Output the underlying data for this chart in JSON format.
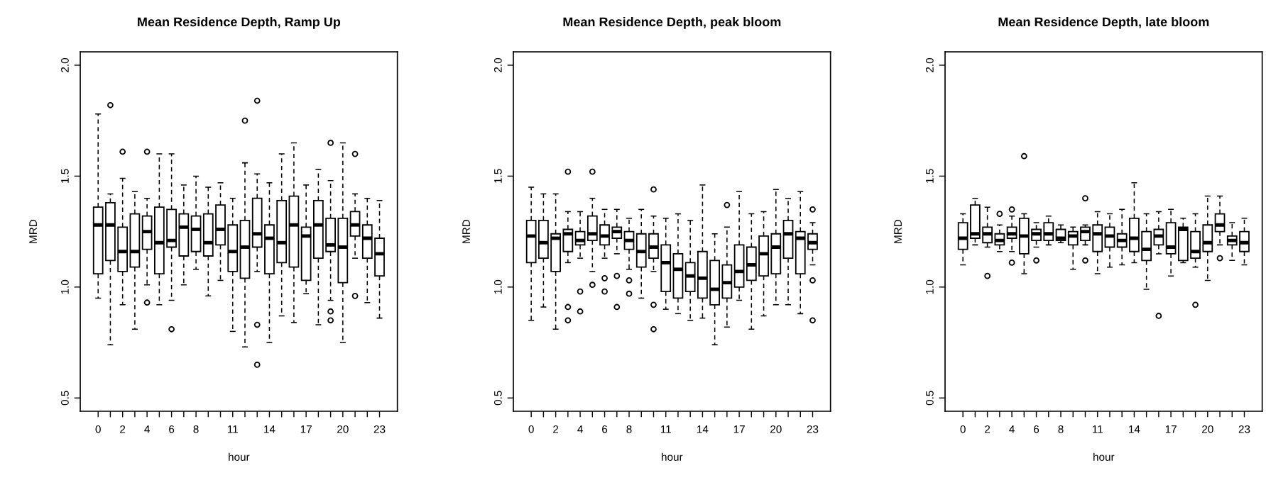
{
  "chart_data": [
    {
      "type": "box",
      "title": "Mean Residence Depth, Ramp Up",
      "xlabel": "hour",
      "ylabel": "MRD",
      "categories": [
        "0",
        null,
        "2",
        null,
        "4",
        null,
        "6",
        null,
        "8",
        null,
        null,
        "11",
        null,
        null,
        "14",
        null,
        null,
        "17",
        null,
        null,
        "20",
        null,
        null,
        "23"
      ],
      "ylim": [
        0.44,
        2.06
      ],
      "yticks": [
        {
          "value": 0.5,
          "label": "0.5"
        },
        {
          "value": 1.0,
          "label": "1.0"
        },
        {
          "value": 1.5,
          "label": "1.5"
        },
        {
          "value": 2.0,
          "label": "2.0"
        }
      ],
      "boxes": [
        {
          "low": 0.95,
          "q1": 1.06,
          "median": 1.28,
          "q3": 1.36,
          "high": 1.78
        },
        {
          "low": 0.74,
          "q1": 1.12,
          "median": 1.28,
          "q3": 1.38,
          "high": 1.42,
          "outliers": [
            1.82
          ]
        },
        {
          "low": 0.92,
          "q1": 1.07,
          "median": 1.16,
          "q3": 1.27,
          "high": 1.49,
          "outliers": [
            1.61
          ]
        },
        {
          "low": 0.81,
          "q1": 1.09,
          "median": 1.16,
          "q3": 1.33,
          "high": 1.43
        },
        {
          "low": 1.01,
          "q1": 1.17,
          "median": 1.25,
          "q3": 1.32,
          "high": 1.4,
          "outliers": [
            1.61,
            0.93
          ]
        },
        {
          "low": 0.92,
          "q1": 1.06,
          "median": 1.2,
          "q3": 1.36,
          "high": 1.6
        },
        {
          "low": 0.94,
          "q1": 1.18,
          "median": 1.21,
          "q3": 1.35,
          "high": 1.6,
          "outliers": [
            0.81
          ]
        },
        {
          "low": 1.01,
          "q1": 1.14,
          "median": 1.27,
          "q3": 1.33,
          "high": 1.46
        },
        {
          "low": 1.08,
          "q1": 1.16,
          "median": 1.26,
          "q3": 1.32,
          "high": 1.5
        },
        {
          "low": 0.96,
          "q1": 1.14,
          "median": 1.2,
          "q3": 1.33,
          "high": 1.45
        },
        {
          "low": 1.03,
          "q1": 1.19,
          "median": 1.26,
          "q3": 1.37,
          "high": 1.47
        },
        {
          "low": 0.8,
          "q1": 1.07,
          "median": 1.16,
          "q3": 1.28,
          "high": 1.4
        },
        {
          "low": 0.73,
          "q1": 1.04,
          "median": 1.18,
          "q3": 1.3,
          "high": 1.56,
          "outliers": [
            1.75
          ]
        },
        {
          "low": 1.07,
          "q1": 1.18,
          "median": 1.24,
          "q3": 1.4,
          "high": 1.51,
          "outliers": [
            1.84,
            0.83,
            0.65
          ]
        },
        {
          "low": 0.75,
          "q1": 1.06,
          "median": 1.22,
          "q3": 1.28,
          "high": 1.47
        },
        {
          "low": 0.87,
          "q1": 1.11,
          "median": 1.2,
          "q3": 1.39,
          "high": 1.6
        },
        {
          "low": 0.84,
          "q1": 1.09,
          "median": 1.28,
          "q3": 1.41,
          "high": 1.65
        },
        {
          "low": 0.97,
          "q1": 1.03,
          "median": 1.23,
          "q3": 1.27,
          "high": 1.46
        },
        {
          "low": 0.83,
          "q1": 1.13,
          "median": 1.28,
          "q3": 1.39,
          "high": 1.53
        },
        {
          "low": 0.94,
          "q1": 1.16,
          "median": 1.19,
          "q3": 1.31,
          "high": 1.48,
          "outliers": [
            1.65,
            0.89,
            0.85
          ]
        },
        {
          "low": 0.75,
          "q1": 1.02,
          "median": 1.18,
          "q3": 1.31,
          "high": 1.65
        },
        {
          "low": 1.13,
          "q1": 1.23,
          "median": 1.28,
          "q3": 1.34,
          "high": 1.42,
          "outliers": [
            1.6,
            0.96
          ]
        },
        {
          "low": 0.93,
          "q1": 1.13,
          "median": 1.22,
          "q3": 1.28,
          "high": 1.4
        },
        {
          "low": 0.86,
          "q1": 1.05,
          "median": 1.15,
          "q3": 1.22,
          "high": 1.39
        }
      ]
    },
    {
      "type": "box",
      "title": "Mean Residence Depth, peak bloom",
      "xlabel": "hour",
      "ylabel": "MRD",
      "categories": [
        "0",
        null,
        "2",
        null,
        "4",
        null,
        "6",
        null,
        "8",
        null,
        null,
        "11",
        null,
        null,
        "14",
        null,
        null,
        "17",
        null,
        null,
        "20",
        null,
        null,
        "23"
      ],
      "ylim": [
        0.44,
        2.06
      ],
      "yticks": [
        {
          "value": 0.5,
          "label": "0.5"
        },
        {
          "value": 1.0,
          "label": "1.0"
        },
        {
          "value": 1.5,
          "label": "1.5"
        },
        {
          "value": 2.0,
          "label": "2.0"
        }
      ],
      "boxes": [
        {
          "low": 0.85,
          "q1": 1.11,
          "median": 1.23,
          "q3": 1.3,
          "high": 1.45
        },
        {
          "low": 0.91,
          "q1": 1.13,
          "median": 1.2,
          "q3": 1.3,
          "high": 1.42
        },
        {
          "low": 0.81,
          "q1": 1.07,
          "median": 1.22,
          "q3": 1.24,
          "high": 1.42
        },
        {
          "low": 1.11,
          "q1": 1.16,
          "median": 1.24,
          "q3": 1.26,
          "high": 1.34,
          "outliers": [
            1.52,
            0.91,
            0.85
          ]
        },
        {
          "low": 1.13,
          "q1": 1.19,
          "median": 1.21,
          "q3": 1.25,
          "high": 1.34,
          "outliers": [
            0.98,
            0.89
          ]
        },
        {
          "low": 1.07,
          "q1": 1.21,
          "median": 1.24,
          "q3": 1.32,
          "high": 1.4,
          "outliers": [
            1.52,
            1.01
          ]
        },
        {
          "low": 1.13,
          "q1": 1.19,
          "median": 1.23,
          "q3": 1.28,
          "high": 1.35,
          "outliers": [
            1.04,
            0.98
          ]
        },
        {
          "low": 1.15,
          "q1": 1.22,
          "median": 1.25,
          "q3": 1.27,
          "high": 1.35,
          "outliers": [
            1.05,
            0.91
          ]
        },
        {
          "low": 1.08,
          "q1": 1.17,
          "median": 1.21,
          "q3": 1.25,
          "high": 1.31,
          "outliers": [
            1.03,
            0.97
          ]
        },
        {
          "low": 0.95,
          "q1": 1.09,
          "median": 1.16,
          "q3": 1.24,
          "high": 1.35
        },
        {
          "low": 1.07,
          "q1": 1.13,
          "median": 1.18,
          "q3": 1.24,
          "high": 1.32,
          "outliers": [
            1.44,
            0.92,
            0.81
          ]
        },
        {
          "low": 0.9,
          "q1": 0.98,
          "median": 1.11,
          "q3": 1.19,
          "high": 1.31
        },
        {
          "low": 0.88,
          "q1": 0.95,
          "median": 1.08,
          "q3": 1.15,
          "high": 1.33
        },
        {
          "low": 0.85,
          "q1": 0.98,
          "median": 1.05,
          "q3": 1.11,
          "high": 1.3
        },
        {
          "low": 0.86,
          "q1": 0.95,
          "median": 1.04,
          "q3": 1.16,
          "high": 1.46
        },
        {
          "low": 0.74,
          "q1": 0.92,
          "median": 0.99,
          "q3": 1.12,
          "high": 1.24
        },
        {
          "low": 0.82,
          "q1": 0.95,
          "median": 1.02,
          "q3": 1.1,
          "high": 1.27,
          "outliers": [
            1.37
          ]
        },
        {
          "low": 0.94,
          "q1": 1.0,
          "median": 1.07,
          "q3": 1.19,
          "high": 1.43
        },
        {
          "low": 0.81,
          "q1": 1.03,
          "median": 1.1,
          "q3": 1.18,
          "high": 1.33
        },
        {
          "low": 0.87,
          "q1": 1.05,
          "median": 1.15,
          "q3": 1.23,
          "high": 1.34
        },
        {
          "low": 0.92,
          "q1": 1.06,
          "median": 1.18,
          "q3": 1.24,
          "high": 1.44
        },
        {
          "low": 0.92,
          "q1": 1.13,
          "median": 1.24,
          "q3": 1.3,
          "high": 1.4
        },
        {
          "low": 0.88,
          "q1": 1.06,
          "median": 1.22,
          "q3": 1.25,
          "high": 1.43
        },
        {
          "low": 1.1,
          "q1": 1.17,
          "median": 1.2,
          "q3": 1.24,
          "high": 1.29,
          "outliers": [
            1.35,
            1.03,
            0.85
          ]
        }
      ]
    },
    {
      "type": "box",
      "title": "Mean Residence Depth, late bloom",
      "xlabel": "hour",
      "ylabel": "MRD",
      "categories": [
        "0",
        null,
        "2",
        null,
        "4",
        null,
        "6",
        null,
        "8",
        null,
        null,
        "11",
        null,
        null,
        "14",
        null,
        null,
        "17",
        null,
        null,
        "20",
        null,
        null,
        "23"
      ],
      "ylim": [
        0.44,
        2.06
      ],
      "yticks": [
        {
          "value": 0.5,
          "label": "0.5"
        },
        {
          "value": 1.0,
          "label": "1.0"
        },
        {
          "value": 1.5,
          "label": "1.5"
        },
        {
          "value": 2.0,
          "label": "2.0"
        }
      ],
      "boxes": [
        {
          "low": 1.1,
          "q1": 1.17,
          "median": 1.22,
          "q3": 1.29,
          "high": 1.33
        },
        {
          "low": 1.19,
          "q1": 1.22,
          "median": 1.24,
          "q3": 1.37,
          "high": 1.4
        },
        {
          "low": 1.18,
          "q1": 1.2,
          "median": 1.24,
          "q3": 1.27,
          "high": 1.36,
          "outliers": [
            1.05
          ]
        },
        {
          "low": 1.16,
          "q1": 1.19,
          "median": 1.21,
          "q3": 1.24,
          "high": 1.28,
          "outliers": [
            1.33
          ]
        },
        {
          "low": 1.16,
          "q1": 1.22,
          "median": 1.24,
          "q3": 1.27,
          "high": 1.32,
          "outliers": [
            1.35,
            1.11
          ]
        },
        {
          "low": 1.06,
          "q1": 1.15,
          "median": 1.23,
          "q3": 1.31,
          "high": 1.33,
          "outliers": [
            1.59
          ]
        },
        {
          "low": 1.18,
          "q1": 1.21,
          "median": 1.24,
          "q3": 1.26,
          "high": 1.29,
          "outliers": [
            1.12
          ]
        },
        {
          "low": 1.19,
          "q1": 1.21,
          "median": 1.24,
          "q3": 1.29,
          "high": 1.32
        },
        {
          "low": 1.2,
          "q1": 1.21,
          "median": 1.22,
          "q3": 1.26,
          "high": 1.28
        },
        {
          "low": 1.08,
          "q1": 1.19,
          "median": 1.23,
          "q3": 1.25,
          "high": 1.27
        },
        {
          "low": 1.19,
          "q1": 1.21,
          "median": 1.25,
          "q3": 1.27,
          "high": 1.28,
          "outliers": [
            1.4,
            1.12
          ]
        },
        {
          "low": 1.06,
          "q1": 1.16,
          "median": 1.24,
          "q3": 1.28,
          "high": 1.34
        },
        {
          "low": 1.09,
          "q1": 1.18,
          "median": 1.23,
          "q3": 1.27,
          "high": 1.33
        },
        {
          "low": 1.1,
          "q1": 1.18,
          "median": 1.21,
          "q3": 1.24,
          "high": 1.35
        },
        {
          "low": 1.11,
          "q1": 1.16,
          "median": 1.22,
          "q3": 1.31,
          "high": 1.47
        },
        {
          "low": 0.99,
          "q1": 1.12,
          "median": 1.17,
          "q3": 1.25,
          "high": 1.33
        },
        {
          "low": 1.15,
          "q1": 1.19,
          "median": 1.23,
          "q3": 1.26,
          "high": 1.34,
          "outliers": [
            0.87
          ]
        },
        {
          "low": 1.05,
          "q1": 1.15,
          "median": 1.18,
          "q3": 1.29,
          "high": 1.35
        },
        {
          "low": 1.11,
          "q1": 1.12,
          "median": 1.26,
          "q3": 1.27,
          "high": 1.31
        },
        {
          "low": 1.09,
          "q1": 1.13,
          "median": 1.16,
          "q3": 1.25,
          "high": 1.33,
          "outliers": [
            0.92
          ]
        },
        {
          "low": 1.03,
          "q1": 1.16,
          "median": 1.2,
          "q3": 1.28,
          "high": 1.41
        },
        {
          "low": 1.19,
          "q1": 1.25,
          "median": 1.28,
          "q3": 1.33,
          "high": 1.41,
          "outliers": [
            1.13
          ]
        },
        {
          "low": 1.12,
          "q1": 1.19,
          "median": 1.21,
          "q3": 1.23,
          "high": 1.29
        },
        {
          "low": 1.1,
          "q1": 1.16,
          "median": 1.2,
          "q3": 1.25,
          "high": 1.31
        }
      ]
    }
  ]
}
